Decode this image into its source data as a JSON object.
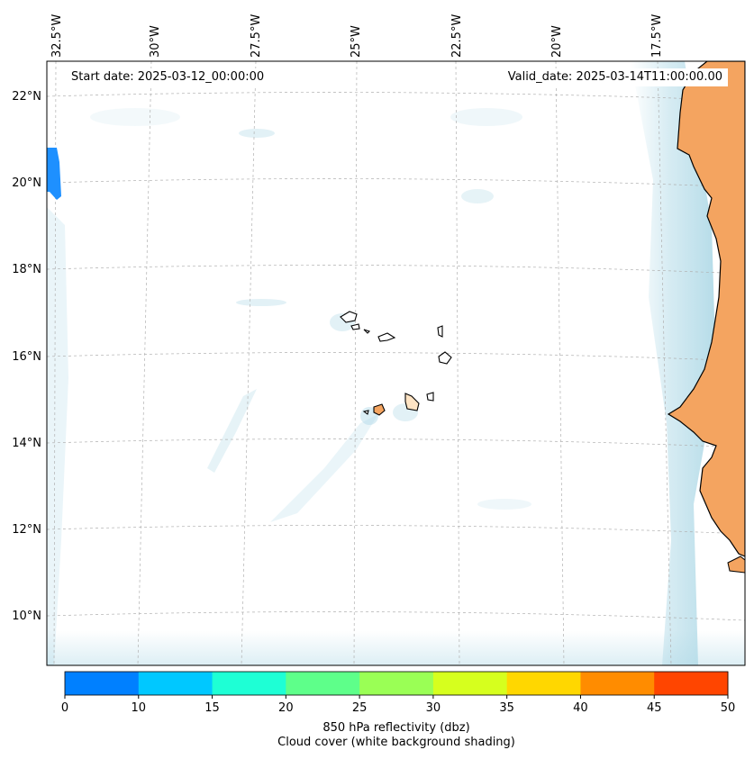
{
  "header": {
    "start_date": "Start date: 2025-03-12_00:00:00",
    "valid_date": "Valid_date: 2025-03-14T11:00:00.00"
  },
  "map": {
    "lon_labels": [
      "32.5°W",
      "30°W",
      "27.5°W",
      "25°W",
      "22.5°W",
      "20°W",
      "17.5°W"
    ],
    "lat_labels": [
      "22°N",
      "20°N",
      "18°N",
      "16°N",
      "14°N",
      "12°N",
      "10°N"
    ],
    "colors": {
      "land": "#f4a460",
      "cloud": "#add8e6",
      "gridline": "#b0b0b0",
      "coast": "#000000"
    }
  },
  "colorbar": {
    "ticks": [
      "0",
      "10",
      "15",
      "20",
      "25",
      "30",
      "35",
      "40",
      "45",
      "50"
    ],
    "colors": [
      "#0080ff",
      "#00c8ff",
      "#1effd5",
      "#5eff8a",
      "#9aff55",
      "#d6ff1e",
      "#ffd700",
      "#ff8c00",
      "#ff4500"
    ],
    "label_line1": "850 hPa reflectivity (dbz)",
    "label_line2": "Cloud cover (white background shading)"
  }
}
